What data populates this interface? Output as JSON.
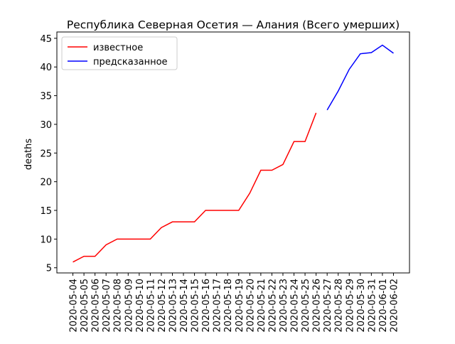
{
  "chart_data": {
    "type": "line",
    "title": "Республика Северная Осетия — Алания (Всего умерших)",
    "y_label": "deaths",
    "categories": [
      "2020-05-04",
      "2020-05-05",
      "2020-05-06",
      "2020-05-07",
      "2020-05-08",
      "2020-05-09",
      "2020-05-10",
      "2020-05-11",
      "2020-05-12",
      "2020-05-13",
      "2020-05-14",
      "2020-05-15",
      "2020-05-16",
      "2020-05-17",
      "2020-05-18",
      "2020-05-19",
      "2020-05-20",
      "2020-05-21",
      "2020-05-22",
      "2020-05-23",
      "2020-05-24",
      "2020-05-25",
      "2020-05-26",
      "2020-05-27",
      "2020-05-28",
      "2020-05-29",
      "2020-05-30",
      "2020-05-31",
      "2020-06-01",
      "2020-06-02"
    ],
    "series": [
      {
        "name": "известное",
        "color": "#ff0000",
        "values": [
          6,
          7,
          7,
          9,
          10,
          10,
          10,
          10,
          12,
          13,
          13,
          13,
          15,
          15,
          15,
          15,
          18,
          22,
          22,
          23,
          27,
          27,
          32,
          null,
          null,
          null,
          null,
          null,
          null,
          null
        ]
      },
      {
        "name": "предсказанное",
        "color": "#0000ff",
        "values": [
          null,
          null,
          null,
          null,
          null,
          null,
          null,
          null,
          null,
          null,
          null,
          null,
          null,
          null,
          null,
          null,
          null,
          null,
          null,
          null,
          null,
          null,
          null,
          32.5,
          35.8,
          39.6,
          42.3,
          42.5,
          43.8,
          42.4
        ]
      }
    ],
    "ylim": [
      4.1,
      46.1
    ],
    "yticks": [
      5,
      10,
      15,
      20,
      25,
      30,
      35,
      40,
      45
    ],
    "legend": "upper-left"
  }
}
